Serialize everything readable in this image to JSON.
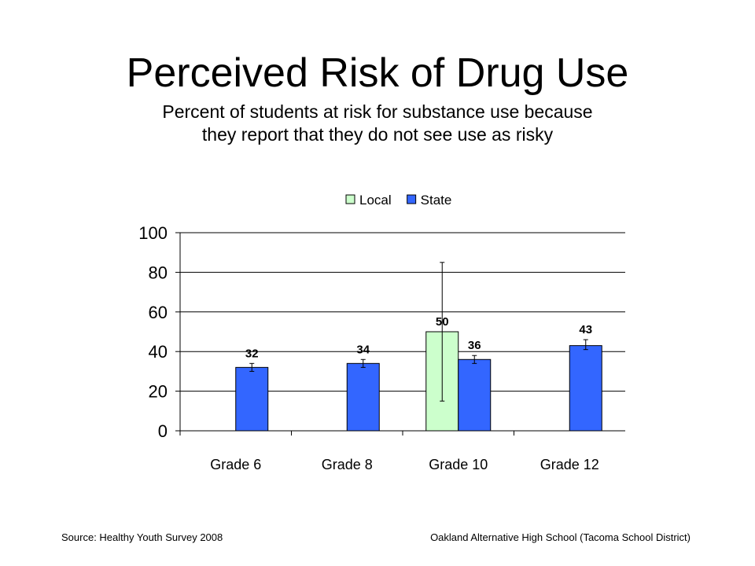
{
  "title": "Perceived Risk of Drug Use",
  "subtitle": [
    "Percent of students at risk for substance use because",
    "they report that they do not see use as risky"
  ],
  "footer": {
    "source": "Source: Healthy Youth Survey 2008",
    "school": "Oakland Alternative High School (Tacoma School District)"
  },
  "colors": {
    "local": "#ccffcc",
    "state": "#3366ff"
  },
  "chart_data": {
    "type": "bar",
    "categories": [
      "Grade 6",
      "Grade 8",
      "Grade 10",
      "Grade 12"
    ],
    "ylim": [
      0,
      100
    ],
    "yticks": [
      0,
      20,
      40,
      60,
      80,
      100
    ],
    "grid": true,
    "legend": "top-center",
    "series": [
      {
        "name": "Local",
        "values": [
          null,
          null,
          50,
          null
        ],
        "labels": [
          "",
          "",
          "50",
          ""
        ],
        "error_low": [
          null,
          null,
          15,
          null
        ],
        "error_high": [
          null,
          null,
          85,
          null
        ]
      },
      {
        "name": "State",
        "values": [
          32,
          34,
          36,
          43
        ],
        "labels": [
          "32",
          "34",
          "36",
          "43"
        ],
        "error_low": [
          30,
          32,
          34,
          41
        ],
        "error_high": [
          34,
          36,
          38,
          46
        ]
      }
    ]
  }
}
